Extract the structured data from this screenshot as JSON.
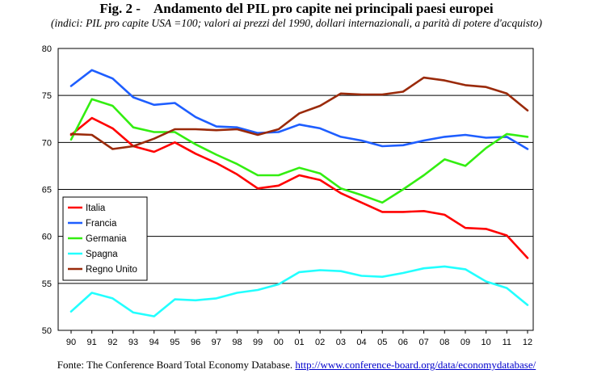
{
  "figure": {
    "title": "Fig. 2 -    Andamento del PIL pro capite nei principali paesi europei",
    "subtitle": "(indici: PIL pro capite USA =100; valori ai prezzi del 1990, dollari internazionali, a parità di potere d'acquisto)",
    "source_text": "Fonte: The Conference Board Total Economy Database.",
    "source_link": "http://www.conference-board.org/data/economydatabase/"
  },
  "chart_data": {
    "type": "line",
    "title": "",
    "xlabel": "",
    "ylabel": "",
    "categories": [
      "90",
      "91",
      "92",
      "93",
      "94",
      "95",
      "96",
      "97",
      "98",
      "99",
      "00",
      "01",
      "02",
      "03",
      "04",
      "05",
      "06",
      "07",
      "08",
      "09",
      "10",
      "11",
      "12"
    ],
    "yticks": [
      "50",
      "55",
      "60",
      "65",
      "70",
      "75",
      "80"
    ],
    "ylim": [
      50,
      80
    ],
    "grid": "horizontal",
    "legend_position": "center-left",
    "series": [
      {
        "name": "Italia",
        "color": "#ff0000",
        "values": [
          70.8,
          72.6,
          71.5,
          69.6,
          69.0,
          70.0,
          68.8,
          67.8,
          66.6,
          65.1,
          65.4,
          66.5,
          66.0,
          64.6,
          63.6,
          62.6,
          62.6,
          62.7,
          62.3,
          60.9,
          60.8,
          60.1,
          57.7
        ]
      },
      {
        "name": "Francia",
        "color": "#1e5eff",
        "values": [
          76.0,
          77.7,
          76.8,
          74.8,
          74.0,
          74.2,
          72.7,
          71.7,
          71.6,
          71.0,
          71.1,
          71.9,
          71.5,
          70.6,
          70.2,
          69.6,
          69.7,
          70.2,
          70.6,
          70.8,
          70.5,
          70.6,
          69.3
        ]
      },
      {
        "name": "Germania",
        "color": "#33ee11",
        "values": [
          70.3,
          74.6,
          73.9,
          71.6,
          71.1,
          71.1,
          69.8,
          68.7,
          67.7,
          66.5,
          66.5,
          67.3,
          66.7,
          65.1,
          64.4,
          63.6,
          65.0,
          66.5,
          68.2,
          67.5,
          69.4,
          70.9,
          70.6
        ]
      },
      {
        "name": "Spagna",
        "color": "#22ffff",
        "values": [
          52.0,
          54.0,
          53.4,
          51.9,
          51.5,
          53.3,
          53.2,
          53.4,
          54.0,
          54.3,
          54.9,
          56.2,
          56.4,
          56.3,
          55.8,
          55.7,
          56.1,
          56.6,
          56.8,
          56.5,
          55.2,
          54.5,
          52.7
        ]
      },
      {
        "name": "Regno Unito",
        "color": "#9a2a0a",
        "values": [
          70.9,
          70.8,
          69.3,
          69.6,
          70.4,
          71.4,
          71.4,
          71.3,
          71.4,
          70.8,
          71.4,
          73.1,
          73.9,
          75.2,
          75.1,
          75.1,
          75.4,
          76.9,
          76.6,
          76.1,
          75.9,
          75.2,
          73.4
        ]
      }
    ]
  }
}
